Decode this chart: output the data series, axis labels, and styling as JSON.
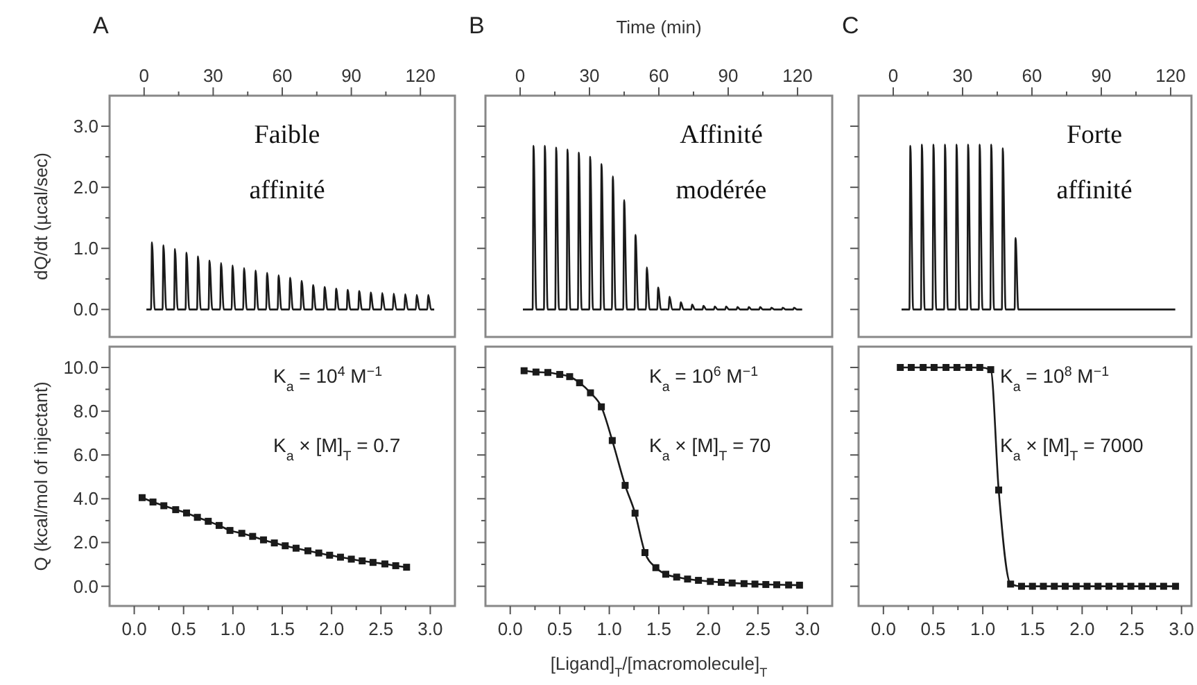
{
  "chart_data": [
    {
      "type": "line",
      "ylabel": "dQ/dt (µcal/sec)",
      "annotations": [
        "A",
        "Faible affinité"
      ],
      "xlim": [
        -15,
        135
      ],
      "ylim": [
        -0.45,
        3.5
      ],
      "xticks": [
        0,
        {
          "value": 15,
          "label": null
        },
        30,
        {
          "value": 45,
          "label": null
        },
        60,
        {
          "value": 75,
          "label": null
        },
        90,
        {
          "value": 105,
          "label": null
        },
        120
      ],
      "yticks": [
        {
          "value": 0,
          "label": "0.0"
        },
        {
          "value": 0.5,
          "label": null
        },
        {
          "value": 1,
          "label": "1.0"
        },
        {
          "value": 1.5,
          "label": null
        },
        {
          "value": 2,
          "label": "2.0"
        },
        {
          "value": 2.5,
          "label": null
        },
        {
          "value": 3,
          "label": "3.0"
        }
      ],
      "series": [
        {
          "color": "#1a1a1a",
          "x": [
            1,
            3,
            3.4,
            4.6,
            8,
            8.4,
            9.6,
            13,
            13.4,
            14.6,
            18,
            18.4,
            19.6,
            23,
            23.4,
            24.6,
            28,
            28.4,
            29.6,
            33,
            33.4,
            34.6,
            38,
            38.4,
            39.6,
            43,
            43.4,
            44.6,
            48,
            48.4,
            49.6,
            53,
            53.4,
            54.6,
            58,
            58.4,
            59.6,
            63,
            63.4,
            64.6,
            68,
            68.4,
            69.6,
            73,
            73.4,
            74.6,
            78,
            78.4,
            79.6,
            83,
            83.4,
            84.6,
            88,
            88.4,
            89.6,
            93,
            93.4,
            94.6,
            98,
            98.4,
            99.6,
            103,
            103.4,
            104.6,
            108,
            108.4,
            109.6,
            113,
            113.4,
            114.6,
            118,
            118.4,
            119.6,
            123,
            123.4,
            124.6,
            126
          ],
          "values": [
            0,
            0,
            1.1,
            0,
            0,
            1.05,
            0,
            0,
            0.99,
            0,
            0,
            0.93,
            0,
            0,
            0.87,
            0,
            0,
            0.8,
            0,
            0,
            0.76,
            0,
            0,
            0.72,
            0,
            0,
            0.68,
            0,
            0,
            0.64,
            0,
            0,
            0.6,
            0,
            0,
            0.56,
            0,
            0,
            0.52,
            0,
            0,
            0.47,
            0,
            0,
            0.4,
            0,
            0,
            0.37,
            0,
            0,
            0.34,
            0,
            0,
            0.32,
            0,
            0,
            0.3,
            0,
            0,
            0.28,
            0,
            0,
            0.27,
            0,
            0,
            0.26,
            0,
            0,
            0.25,
            0,
            0,
            0.24,
            0,
            0,
            0.24,
            0,
            0
          ]
        }
      ]
    },
    {
      "type": "line",
      "xlabel": "Time (min)",
      "annotations": [
        "B",
        "Affinité modérée"
      ],
      "tick_labels": "x",
      "xlim": [
        -15,
        135
      ],
      "ylim": [
        -0.45,
        3.5
      ],
      "xticks": [
        0,
        {
          "value": 15,
          "label": null
        },
        30,
        {
          "value": 45,
          "label": null
        },
        60,
        {
          "value": 75,
          "label": null
        },
        90,
        {
          "value": 105,
          "label": null
        },
        120
      ],
      "yticks": [
        0,
        {
          "value": 0.5,
          "label": null
        },
        1,
        {
          "value": 1.5,
          "label": null
        },
        2,
        {
          "value": 2.5,
          "label": null
        },
        3
      ],
      "series": [
        {
          "color": "#1a1a1a",
          "x": [
            1.2,
            5.4,
            5.8,
            7,
            10.3,
            10.7,
            11.9,
            15.2,
            15.6,
            16.8,
            20.1,
            20.5,
            21.7,
            25,
            25.4,
            26.6,
            29.9,
            30.3,
            31.5,
            34.8,
            35.2,
            36.4,
            39.7,
            40.1,
            41.3,
            44.6,
            45,
            46.2,
            49.5,
            49.9,
            51.1,
            54.4,
            54.8,
            56,
            59.3,
            59.7,
            60.9,
            64.2,
            64.6,
            65.8,
            69.1,
            69.5,
            70.7,
            74,
            74.4,
            75.6,
            78.9,
            79.3,
            80.5,
            83.8,
            84.2,
            85.4,
            88.7,
            89.1,
            90.3,
            93.6,
            94,
            95.2,
            98.5,
            98.9,
            100.1,
            103.4,
            103.8,
            105,
            108.3,
            108.7,
            109.9,
            113.2,
            113.6,
            114.8,
            118.1,
            118.5,
            119.7,
            122
          ],
          "values": [
            0,
            0,
            2.68,
            0,
            0,
            2.68,
            0,
            0,
            2.65,
            0,
            0,
            2.62,
            0,
            0,
            2.57,
            0,
            0,
            2.5,
            0,
            0,
            2.38,
            0,
            0,
            2.18,
            0,
            0,
            1.79,
            0,
            0,
            1.22,
            0,
            0,
            0.69,
            0,
            0,
            0.36,
            0,
            0,
            0.21,
            0,
            0,
            0.12,
            0,
            0,
            0.08,
            0,
            0,
            0.06,
            0,
            0,
            0.05,
            0,
            0,
            0.05,
            0,
            0,
            0.04,
            0,
            0,
            0.04,
            0,
            0,
            0.04,
            0,
            0,
            0.03,
            0,
            0,
            0.03,
            0,
            0,
            0.03,
            0,
            0
          ]
        }
      ]
    },
    {
      "type": "line",
      "annotations": [
        "C",
        "Forte affinité"
      ],
      "tick_labels": "x",
      "xlim": [
        -15,
        129
      ],
      "ylim": [
        -0.45,
        3.5
      ],
      "xticks": [
        0,
        {
          "value": 15,
          "label": null
        },
        30,
        {
          "value": 45,
          "label": null
        },
        60,
        {
          "value": 75,
          "label": null
        },
        90,
        {
          "value": 105,
          "label": null
        },
        120
      ],
      "yticks": [
        0,
        {
          "value": 0.5,
          "label": null
        },
        1,
        {
          "value": 1.5,
          "label": null
        },
        2,
        {
          "value": 2.5,
          "label": null
        },
        3
      ],
      "series": [
        {
          "color": "#1a1a1a",
          "x": [
            3.6,
            7,
            7.4,
            8.6,
            12,
            12.4,
            13.6,
            17,
            17.4,
            18.6,
            22,
            22.4,
            23.6,
            27,
            27.4,
            28.6,
            32,
            32.4,
            33.6,
            37,
            37.4,
            38.6,
            42,
            42.4,
            43.6,
            47,
            47.4,
            48.6,
            52.5,
            52.9,
            54.1,
            122
          ],
          "values": [
            0,
            0,
            2.68,
            0,
            0,
            2.7,
            0,
            0,
            2.7,
            0,
            0,
            2.7,
            0,
            0,
            2.7,
            0,
            0,
            2.7,
            0,
            0,
            2.7,
            0,
            0,
            2.7,
            0,
            0,
            2.64,
            0,
            0,
            1.17,
            0,
            0
          ]
        }
      ]
    },
    {
      "type": "line",
      "ylabel": "Q (kcal/mol of injectant)",
      "annotations": [
        "K$_{a}$ = 10$^{4}$ M$^{−1}$",
        "K$_{a}$ × [M]$_{T}$ = 0.7"
      ],
      "marker": "square",
      "xlim": [
        -0.25,
        3.25
      ],
      "ylim": [
        -0.9,
        10.95
      ],
      "xticks": [
        {
          "value": 0,
          "label": "0.0"
        },
        {
          "value": 0.25,
          "label": null
        },
        0.5,
        {
          "value": 0.75,
          "label": null
        },
        {
          "value": 1,
          "label": "1.0"
        },
        {
          "value": 1.25,
          "label": null
        },
        1.5,
        {
          "value": 1.75,
          "label": null
        },
        {
          "value": 2,
          "label": "2.0"
        },
        {
          "value": 2.25,
          "label": null
        },
        2.5,
        {
          "value": 2.75,
          "label": null
        },
        {
          "value": 3,
          "label": "3.0"
        }
      ],
      "yticks": [
        {
          "value": 0,
          "label": "0.0"
        },
        {
          "value": 1,
          "label": null
        },
        {
          "value": 2,
          "label": "2.0"
        },
        {
          "value": 3,
          "label": null
        },
        {
          "value": 4,
          "label": "4.0"
        },
        {
          "value": 5,
          "label": null
        },
        {
          "value": 6,
          "label": "6.0"
        },
        {
          "value": 7,
          "label": null
        },
        {
          "value": 8,
          "label": "8.0"
        },
        {
          "value": 9,
          "label": null
        },
        {
          "value": 10,
          "label": "10.0"
        }
      ],
      "series": [
        {
          "color": "#1a1a1a",
          "x": [
            0.08,
            0.19,
            0.3,
            0.42,
            0.53,
            0.64,
            0.75,
            0.86,
            0.97,
            1.09,
            1.2,
            1.31,
            1.42,
            1.53,
            1.64,
            1.76,
            1.87,
            1.98,
            2.09,
            2.2,
            2.31,
            2.42,
            2.54,
            2.65,
            2.76
          ],
          "values": [
            4.05,
            3.85,
            3.68,
            3.5,
            3.35,
            3.15,
            2.97,
            2.78,
            2.55,
            2.42,
            2.28,
            2.12,
            1.98,
            1.85,
            1.74,
            1.62,
            1.52,
            1.42,
            1.33,
            1.24,
            1.16,
            1.09,
            1.02,
            0.94,
            0.87
          ]
        }
      ]
    },
    {
      "type": "line",
      "xlabel": "[Ligand]$_{T}$/[macromolecule]$_{T}$",
      "annotations": [
        "K$_{a}$ = 10$^{6}$ M$^{−1}$",
        "K$_{a}$ × [M]$_{T}$ = 70"
      ],
      "marker": "square",
      "tick_labels": "x",
      "xlim": [
        -0.25,
        3.25
      ],
      "ylim": [
        -0.9,
        10.95
      ],
      "xticks": [
        {
          "value": 0,
          "label": "0.0"
        },
        {
          "value": 0.25,
          "label": null
        },
        0.5,
        {
          "value": 0.75,
          "label": null
        },
        {
          "value": 1,
          "label": "1.0"
        },
        {
          "value": 1.25,
          "label": null
        },
        1.5,
        {
          "value": 1.75,
          "label": null
        },
        {
          "value": 2,
          "label": "2.0"
        },
        {
          "value": 2.25,
          "label": null
        },
        2.5,
        {
          "value": 2.75,
          "label": null
        },
        {
          "value": 3,
          "label": "3.0"
        }
      ],
      "yticks": [
        0,
        {
          "value": 1,
          "label": null
        },
        2,
        {
          "value": 3,
          "label": null
        },
        4,
        {
          "value": 5,
          "label": null
        },
        6,
        {
          "value": 7,
          "label": null
        },
        8,
        {
          "value": 9,
          "label": null
        },
        10
      ],
      "series": [
        {
          "color": "#1a1a1a",
          "x": [
            0.14,
            0.26,
            0.38,
            0.5,
            0.6,
            0.7,
            0.81,
            0.92,
            1.03,
            1.16,
            1.26,
            1.36,
            1.47,
            1.57,
            1.68,
            1.79,
            1.9,
            2.02,
            2.13,
            2.24,
            2.36,
            2.47,
            2.58,
            2.69,
            2.81,
            2.92
          ],
          "values": [
            9.85,
            9.79,
            9.77,
            9.68,
            9.58,
            9.3,
            8.84,
            8.2,
            6.66,
            4.61,
            3.34,
            1.54,
            0.85,
            0.55,
            0.42,
            0.33,
            0.27,
            0.22,
            0.18,
            0.15,
            0.12,
            0.1,
            0.08,
            0.07,
            0.06,
            0.05
          ]
        }
      ]
    },
    {
      "type": "line",
      "annotations": [
        "K$_{a}$ = 10$^{8}$ M$^{−1}$",
        "K$_{a}$ × [M]$_{T}$ = 7000"
      ],
      "marker": "square",
      "tick_labels": "x",
      "xlim": [
        -0.25,
        3.1
      ],
      "ylim": [
        -0.9,
        10.95
      ],
      "xticks": [
        {
          "value": 0,
          "label": "0.0"
        },
        {
          "value": 0.25,
          "label": null
        },
        0.5,
        {
          "value": 0.75,
          "label": null
        },
        {
          "value": 1,
          "label": "1.0"
        },
        {
          "value": 1.25,
          "label": null
        },
        1.5,
        {
          "value": 1.75,
          "label": null
        },
        {
          "value": 2,
          "label": "2.0"
        },
        {
          "value": 2.25,
          "label": null
        },
        2.5,
        {
          "value": 2.75,
          "label": null
        },
        {
          "value": 3,
          "label": "3.0"
        }
      ],
      "yticks": [
        0,
        {
          "value": 1,
          "label": null
        },
        2,
        {
          "value": 3,
          "label": null
        },
        4,
        {
          "value": 5,
          "label": null
        },
        6,
        {
          "value": 7,
          "label": null
        },
        8,
        {
          "value": 9,
          "label": null
        },
        10
      ],
      "series": [
        {
          "color": "#1a1a1a",
          "x": [
            0.17,
            0.28,
            0.4,
            0.51,
            0.63,
            0.74,
            0.86,
            0.97,
            1.08,
            1.16,
            1.28,
            1.39,
            1.5,
            1.61,
            1.72,
            1.83,
            1.94,
            2.05,
            2.16,
            2.27,
            2.38,
            2.49,
            2.6,
            2.71,
            2.82,
            2.94
          ],
          "values": [
            10,
            10,
            10,
            10,
            10,
            10,
            10,
            10,
            9.9,
            4.4,
            0.1,
            0,
            0,
            0,
            0,
            0,
            0,
            0,
            0,
            0,
            0,
            0,
            0,
            0,
            0,
            0
          ]
        }
      ]
    }
  ]
}
